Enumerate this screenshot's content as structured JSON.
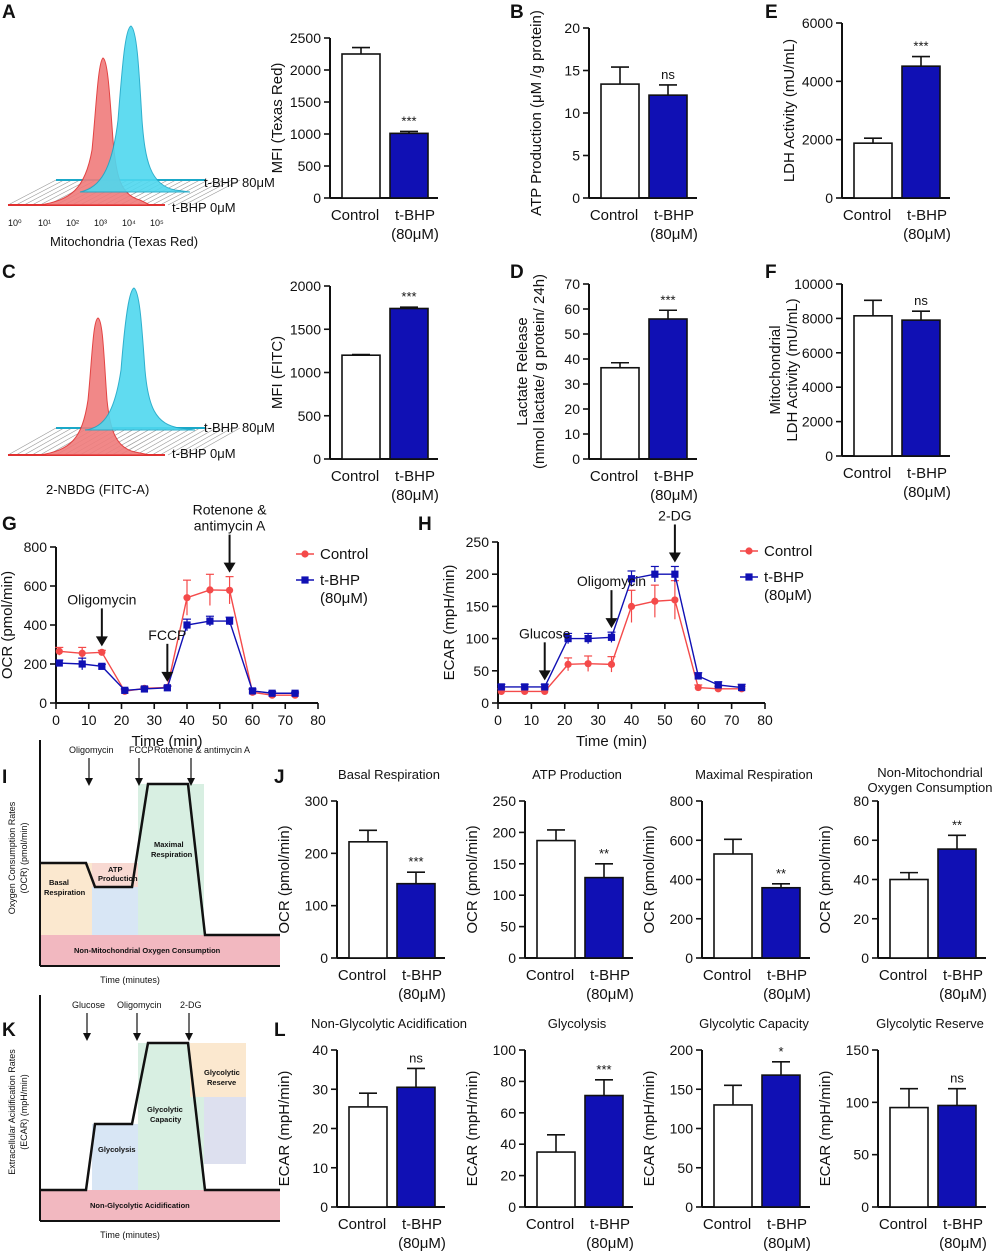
{
  "colors": {
    "blue": "#1010b4",
    "red": "#f44a4a",
    "redfill": "#f07c7c",
    "cyan": "#4fd8ef",
    "control": "#ffffff"
  },
  "groups": {
    "control": "Control",
    "tbhp_a": "t-BHP",
    "tbhp_b": "(80μM)"
  },
  "panels": {
    "A": "A",
    "B": "B",
    "C": "C",
    "D": "D",
    "E": "E",
    "F": "F",
    "G": "G",
    "H": "H",
    "I": "I",
    "J": "J",
    "K": "K",
    "L": "L"
  },
  "histA": {
    "xlabel": "Mitochondria (Texas Red)",
    "label_high": "t-BHP 80μM",
    "label_low": "t-BHP 0μM",
    "ticks": [
      "10⁰",
      "10¹",
      "10²",
      "10³",
      "10⁴",
      "10⁵"
    ]
  },
  "histC": {
    "xlabel": "2-NBDG (FITC-A)",
    "label_high": "t-BHP 80μM",
    "label_low": "t-BHP 0μM"
  },
  "chart_data": [
    {
      "id": "A",
      "type": "bar",
      "ylabel": "MFI (Texas Red)",
      "ylim": [
        0,
        2500
      ],
      "yticks": [
        0,
        500,
        1000,
        1500,
        2000,
        2500
      ],
      "values": [
        2250,
        1010
      ],
      "errors": [
        100,
        30
      ],
      "sig": "***"
    },
    {
      "id": "B",
      "type": "bar",
      "ylabel": "ATP Production (μM /g protein)",
      "ylim": [
        0,
        20
      ],
      "yticks": [
        0,
        5,
        10,
        15,
        20
      ],
      "values": [
        13.4,
        12.1
      ],
      "errors": [
        2,
        1.2
      ],
      "sig": "ns"
    },
    {
      "id": "E",
      "type": "bar",
      "ylabel": "LDH Activity (mU/mL)",
      "ylim": [
        0,
        6000
      ],
      "yticks": [
        0,
        2000,
        4000,
        6000
      ],
      "values": [
        1880,
        4520
      ],
      "errors": [
        170,
        330
      ],
      "sig": "***"
    },
    {
      "id": "C",
      "type": "bar",
      "ylabel": "MFI (FITC)",
      "ylim": [
        0,
        2000
      ],
      "yticks": [
        0,
        500,
        1000,
        1500,
        2000
      ],
      "values": [
        1200,
        1740
      ],
      "errors": [
        8,
        15
      ],
      "sig": "***"
    },
    {
      "id": "D",
      "type": "bar",
      "ylabel": [
        "Lactate Release",
        "(mmol lactate/ g protein/ 24h)"
      ],
      "ylim": [
        0,
        70
      ],
      "yticks": [
        0,
        10,
        20,
        30,
        40,
        50,
        60,
        70
      ],
      "values": [
        36.5,
        56
      ],
      "errors": [
        2,
        3.5
      ],
      "sig": "***"
    },
    {
      "id": "F",
      "type": "bar",
      "ylabel": [
        "Mitochondrial",
        "LDH Activity (mU/mL)"
      ],
      "ylim": [
        0,
        10000
      ],
      "yticks": [
        0,
        2000,
        4000,
        6000,
        8000,
        10000
      ],
      "values": [
        8150,
        7900
      ],
      "errors": [
        900,
        520
      ],
      "sig": "ns"
    },
    {
      "id": "G",
      "type": "line",
      "ylabel": "OCR (pmol/min)",
      "xlabel": "Time (min)",
      "ylim": [
        0,
        800
      ],
      "yticks": [
        0,
        200,
        400,
        600,
        800
      ],
      "xlim": [
        0,
        80
      ],
      "xticks": [
        0,
        10,
        20,
        30,
        40,
        50,
        60,
        70,
        80
      ],
      "series": [
        {
          "name": "Control",
          "x": [
            1,
            8,
            14,
            21,
            27,
            34,
            40,
            47,
            53,
            60,
            66,
            73
          ],
          "y": [
            265,
            255,
            260,
            60,
            75,
            80,
            540,
            580,
            578,
            55,
            40,
            40
          ],
          "err": [
            20,
            30,
            10,
            8,
            10,
            8,
            90,
            80,
            70,
            15,
            10,
            8
          ]
        },
        {
          "name": "t-BHP (80μM)",
          "x": [
            1,
            8,
            14,
            21,
            27,
            34,
            40,
            47,
            53,
            60,
            66,
            73
          ],
          "y": [
            205,
            200,
            188,
            65,
            72,
            78,
            400,
            420,
            420,
            62,
            50,
            50
          ],
          "err": [
            15,
            30,
            10,
            8,
            8,
            8,
            30,
            25,
            20,
            10,
            8,
            6
          ]
        }
      ],
      "annotations": [
        {
          "text": "Oligomycin",
          "x": 14
        },
        {
          "text": "FCCP",
          "x": 34
        },
        {
          "text": "Rotenone &",
          "text2": "antimycin A",
          "x": 53
        }
      ],
      "legend": [
        "Control",
        "t-BHP",
        "(80μM)"
      ]
    },
    {
      "id": "H",
      "type": "line",
      "ylabel": "ECAR (mpH/min)",
      "xlabel": "Time (min)",
      "ylim": [
        0,
        250
      ],
      "yticks": [
        0,
        50,
        100,
        150,
        200,
        250
      ],
      "xlim": [
        0,
        80
      ],
      "xticks": [
        0,
        10,
        20,
        30,
        40,
        50,
        60,
        70,
        80
      ],
      "series": [
        {
          "name": "Control",
          "x": [
            1,
            8,
            14,
            21,
            27,
            34,
            40,
            47,
            53,
            60,
            66,
            73
          ],
          "y": [
            18,
            18,
            18,
            60,
            61,
            60,
            150,
            158,
            160,
            24,
            22,
            22
          ],
          "err": [
            4,
            4,
            4,
            10,
            12,
            12,
            25,
            25,
            30,
            4,
            4,
            4
          ]
        },
        {
          "name": "t-BHP (80μM)",
          "x": [
            1,
            8,
            14,
            21,
            27,
            34,
            40,
            47,
            53,
            60,
            66,
            73
          ],
          "y": [
            25,
            25,
            25,
            100,
            100,
            102,
            193,
            200,
            200,
            42,
            28,
            24
          ],
          "err": [
            4,
            4,
            4,
            8,
            8,
            8,
            12,
            12,
            12,
            5,
            5,
            5
          ]
        }
      ],
      "annotations": [
        {
          "text": "Glucose",
          "x": 14
        },
        {
          "text": "Oligomycin",
          "x": 34
        },
        {
          "text": "2-DG",
          "x": 53
        }
      ],
      "legend": [
        "Control",
        "t-BHP",
        "(80μM)"
      ]
    },
    {
      "id": "J1",
      "type": "bar",
      "title": "Basal Respiration",
      "ylabel": "OCR (pmol/min)",
      "ylim": [
        0,
        300
      ],
      "yticks": [
        0,
        100,
        200,
        300
      ],
      "values": [
        222,
        142
      ],
      "errors": [
        22,
        22
      ],
      "sig": "***"
    },
    {
      "id": "J2",
      "type": "bar",
      "title": "ATP Production",
      "ylabel": "OCR (pmol/min)",
      "ylim": [
        0,
        250
      ],
      "yticks": [
        0,
        50,
        100,
        150,
        200,
        250
      ],
      "values": [
        187,
        128
      ],
      "errors": [
        17,
        22
      ],
      "sig": "**"
    },
    {
      "id": "J3",
      "type": "bar",
      "title": "Maximal Respiration",
      "ylabel": "OCR (pmol/min)",
      "ylim": [
        0,
        800
      ],
      "yticks": [
        0,
        200,
        400,
        600,
        800
      ],
      "values": [
        530,
        358
      ],
      "errors": [
        75,
        20
      ],
      "sig": "**"
    },
    {
      "id": "J4",
      "type": "bar",
      "title": "Non-Mitochondrial",
      "title2": "Oxygen Consumption",
      "ylabel": "OCR (pmol/min)",
      "ylim": [
        0,
        80
      ],
      "yticks": [
        0,
        20,
        40,
        60,
        80
      ],
      "values": [
        40,
        55.5
      ],
      "errors": [
        3.5,
        7
      ],
      "sig": "**"
    },
    {
      "id": "L1",
      "type": "bar",
      "title": "Non-Glycolytic Acidification",
      "ylabel": "ECAR (mpH/min)",
      "ylim": [
        0,
        40
      ],
      "yticks": [
        0,
        10,
        20,
        30,
        40
      ],
      "values": [
        25.5,
        30.5
      ],
      "errors": [
        3.5,
        4.8
      ],
      "sig": "ns"
    },
    {
      "id": "L2",
      "type": "bar",
      "title": "Glycolysis",
      "ylabel": "ECAR (mpH/min)",
      "ylim": [
        0,
        100
      ],
      "yticks": [
        0,
        20,
        40,
        60,
        80,
        100
      ],
      "values": [
        35,
        71
      ],
      "errors": [
        11,
        10
      ],
      "sig": "***"
    },
    {
      "id": "L3",
      "type": "bar",
      "title": "Glycolytic Capacity",
      "ylabel": "ECAR (mpH/min)",
      "ylim": [
        0,
        200
      ],
      "yticks": [
        0,
        50,
        100,
        150,
        200
      ],
      "values": [
        130,
        168
      ],
      "errors": [
        25,
        17
      ],
      "sig": "*"
    },
    {
      "id": "L4",
      "type": "bar",
      "title": "Glycolytic Reserve",
      "ylabel": "ECAR (mpH/min)",
      "ylim": [
        0,
        150
      ],
      "yticks": [
        0,
        50,
        100,
        150
      ],
      "values": [
        95,
        97
      ],
      "errors": [
        18,
        16
      ],
      "sig": "ns"
    }
  ],
  "schemI": {
    "ylabel1": "Oxygen Consumption Rates",
    "ylabel2": "(OCR) (pmol/min)",
    "xlabel": "Time (minutes)",
    "inj": [
      "Oligomycin",
      "FCCP",
      "Rotenone & antimycin A"
    ],
    "regions": {
      "basal": [
        "Basal",
        "Respiration"
      ],
      "atp": [
        "ATP",
        "Production"
      ],
      "maximal": [
        "Maximal",
        "Respiration"
      ],
      "nonmito": "Non-Mitochondrial Oxygen Consumption"
    }
  },
  "schemK": {
    "ylabel1": "Extracellular Acidification Rates",
    "ylabel2": "(ECAR) (mpH/min)",
    "xlabel": "Time (minutes)",
    "inj": [
      "Glucose",
      "Oligomycin",
      "2-DG"
    ],
    "regions": {
      "glycolysis": "Glycolysis",
      "capacity": [
        "Glycolytic",
        "Capacity"
      ],
      "reserve": [
        "Glycolytic",
        "Reserve"
      ],
      "nonglyco": "Non-Glycolytic Acidification"
    }
  }
}
